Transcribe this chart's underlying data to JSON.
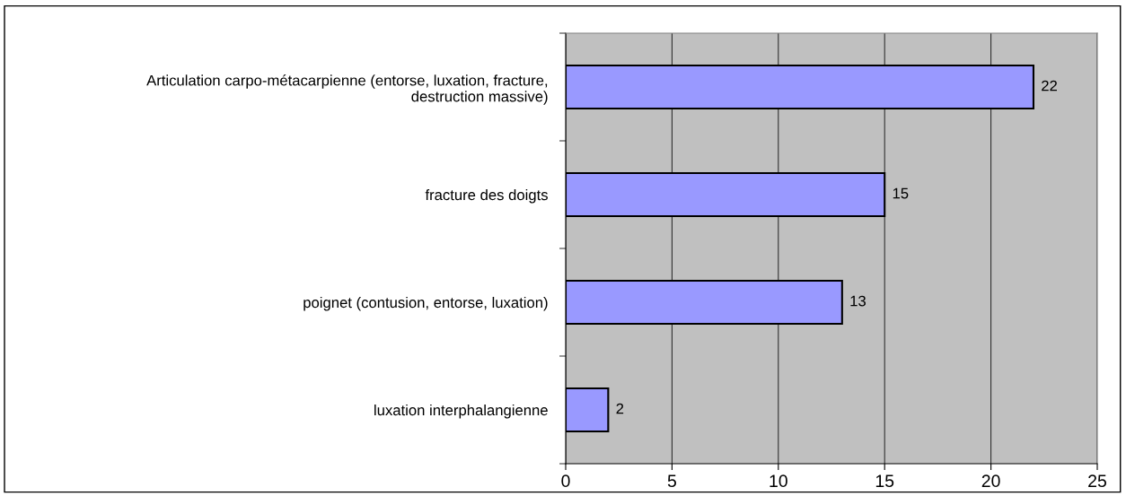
{
  "chart_data": {
    "type": "bar",
    "orientation": "horizontal",
    "categories": [
      "Articulation carpo-métacarpienne (entorse, luxation, fracture, destruction massive)",
      "fracture des doigts",
      "poignet (contusion, entorse, luxation)",
      "luxation interphalangienne"
    ],
    "values": [
      22,
      15,
      13,
      2
    ],
    "color": "#9999ff",
    "xlim": [
      0,
      25
    ],
    "xticks": [
      0,
      5,
      10,
      15,
      20,
      25
    ],
    "grid": "x",
    "data_labels": true
  }
}
